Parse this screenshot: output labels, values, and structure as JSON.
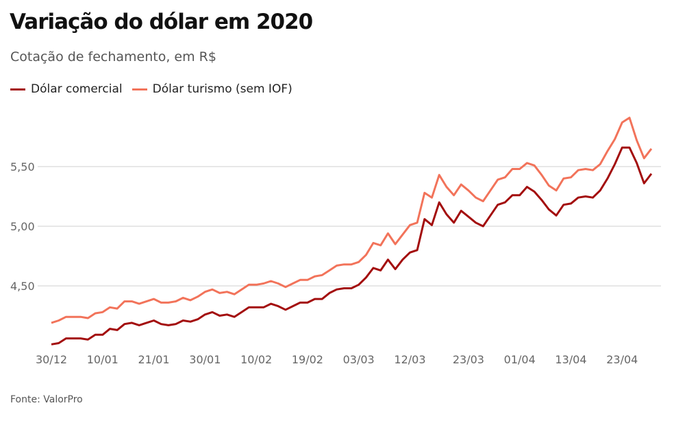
{
  "title": "Variação do dólar em 2020",
  "subtitle": "Cotação de fechamento, em R$",
  "source": "Fonte: ValorPro",
  "chart_data": {
    "type": "line",
    "title": "Variação do dólar em 2020",
    "subtitle": "Cotação de fechamento, em R$",
    "xlabel": "",
    "ylabel": "",
    "ylim": [
      3.99,
      5.98
    ],
    "y_ticks": [
      4.5,
      5.0,
      5.5
    ],
    "y_tick_labels": [
      "4,50",
      "5,00",
      "5,50"
    ],
    "x_tick_labels": [
      "30/12",
      "10/01",
      "21/01",
      "30/01",
      "10/02",
      "19/02",
      "03/03",
      "12/03",
      "23/03",
      "01/04",
      "13/04",
      "23/04"
    ],
    "x_tick_index": [
      0,
      7,
      14,
      21,
      28,
      35,
      42,
      49,
      57,
      64,
      71,
      78
    ],
    "grid": "horizontal",
    "legend": "top-left",
    "series": [
      {
        "name": "Dólar comercial",
        "color": "#a30d0d",
        "values": [
          4.01,
          4.02,
          4.06,
          4.06,
          4.06,
          4.05,
          4.09,
          4.09,
          4.14,
          4.13,
          4.18,
          4.19,
          4.17,
          4.19,
          4.21,
          4.18,
          4.17,
          4.18,
          4.21,
          4.2,
          4.22,
          4.26,
          4.28,
          4.25,
          4.26,
          4.24,
          4.28,
          4.32,
          4.32,
          4.32,
          4.35,
          4.33,
          4.3,
          4.33,
          4.36,
          4.36,
          4.39,
          4.39,
          4.44,
          4.47,
          4.48,
          4.48,
          4.51,
          4.57,
          4.65,
          4.63,
          4.72,
          4.64,
          4.72,
          4.78,
          4.8,
          5.06,
          5.01,
          5.2,
          5.1,
          5.03,
          5.13,
          5.08,
          5.03,
          5.0,
          5.09,
          5.18,
          5.2,
          5.26,
          5.26,
          5.33,
          5.29,
          5.22,
          5.14,
          5.09,
          5.18,
          5.19,
          5.24,
          5.25,
          5.24,
          5.3,
          5.4,
          5.52,
          5.66,
          5.66,
          5.53,
          5.36,
          5.44
        ]
      },
      {
        "name": "Dólar turismo (sem IOF)",
        "color": "#f2735a",
        "values": [
          4.19,
          4.21,
          4.24,
          4.24,
          4.24,
          4.23,
          4.27,
          4.28,
          4.32,
          4.31,
          4.37,
          4.37,
          4.35,
          4.37,
          4.39,
          4.36,
          4.36,
          4.37,
          4.4,
          4.38,
          4.41,
          4.45,
          4.47,
          4.44,
          4.45,
          4.43,
          4.47,
          4.51,
          4.51,
          4.52,
          4.54,
          4.52,
          4.49,
          4.52,
          4.55,
          4.55,
          4.58,
          4.59,
          4.63,
          4.67,
          4.68,
          4.68,
          4.7,
          4.76,
          4.86,
          4.84,
          4.94,
          4.85,
          4.93,
          5.01,
          5.03,
          5.28,
          5.24,
          5.43,
          5.33,
          5.26,
          5.35,
          5.3,
          5.24,
          5.21,
          5.3,
          5.39,
          5.41,
          5.48,
          5.48,
          5.53,
          5.51,
          5.43,
          5.34,
          5.3,
          5.4,
          5.41,
          5.47,
          5.48,
          5.47,
          5.52,
          5.63,
          5.73,
          5.87,
          5.91,
          5.72,
          5.57,
          5.65
        ]
      }
    ]
  }
}
